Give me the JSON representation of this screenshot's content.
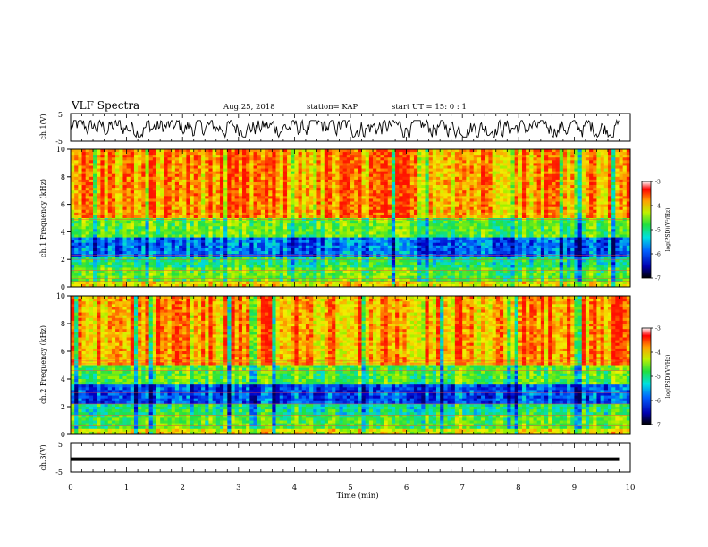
{
  "header": {
    "title": "VLF Spectra",
    "date": "Aug.25, 2018",
    "station": "station= KAP",
    "start": "start  UT  =   15: 0  : 1"
  },
  "chart_data": [
    {
      "type": "line",
      "name": "ch1-waveform",
      "ylabel": "ch.1(V)",
      "ylim": [
        -5,
        5
      ],
      "yticks": [
        "5",
        "-5"
      ],
      "x_range_min": [
        0,
        9.8
      ],
      "y_range_approx": [
        -3.5,
        2.5
      ]
    },
    {
      "type": "heatmap",
      "name": "ch1-spectrogram",
      "ylabel": "ch.1  Frequency  (kHz)",
      "xlim": [
        0,
        10
      ],
      "ylim": [
        0,
        10
      ],
      "yticks": [
        "0",
        "2",
        "4",
        "6",
        "8",
        "10"
      ],
      "colorbar": {
        "label": "log(PSD)(V²/Hz)",
        "range": [
          -7,
          -3
        ],
        "ticks": [
          "-3",
          "-4",
          "-5",
          "-6",
          "-7"
        ]
      }
    },
    {
      "type": "heatmap",
      "name": "ch2-spectrogram",
      "ylabel": "ch.2  Frequency  (kHz)",
      "xlim": [
        0,
        10
      ],
      "ylim": [
        0,
        10
      ],
      "yticks": [
        "0",
        "2",
        "4",
        "6",
        "8",
        "10"
      ],
      "colorbar": {
        "label": "log(PSD)(V²/Hz)",
        "range": [
          -7,
          -3
        ],
        "ticks": [
          "-3",
          "-4",
          "-5",
          "-6",
          "-7"
        ]
      }
    },
    {
      "type": "line",
      "name": "ch3-waveform",
      "ylabel": "ch.3(V)",
      "ylim": [
        -5,
        5
      ],
      "yticks": [
        "5",
        "-5"
      ],
      "constant_value": -0.5
    }
  ],
  "xaxis": {
    "label": "Time  (min)",
    "ticks": [
      "0",
      "1",
      "2",
      "3",
      "4",
      "5",
      "6",
      "7",
      "8",
      "9",
      "10"
    ]
  },
  "colors": {
    "colormap": [
      "#000070",
      "#0000e0",
      "#0090ff",
      "#00e0e0",
      "#20e040",
      "#a0f000",
      "#f0f000",
      "#ff8000",
      "#ff0000",
      "#ffffff"
    ]
  }
}
